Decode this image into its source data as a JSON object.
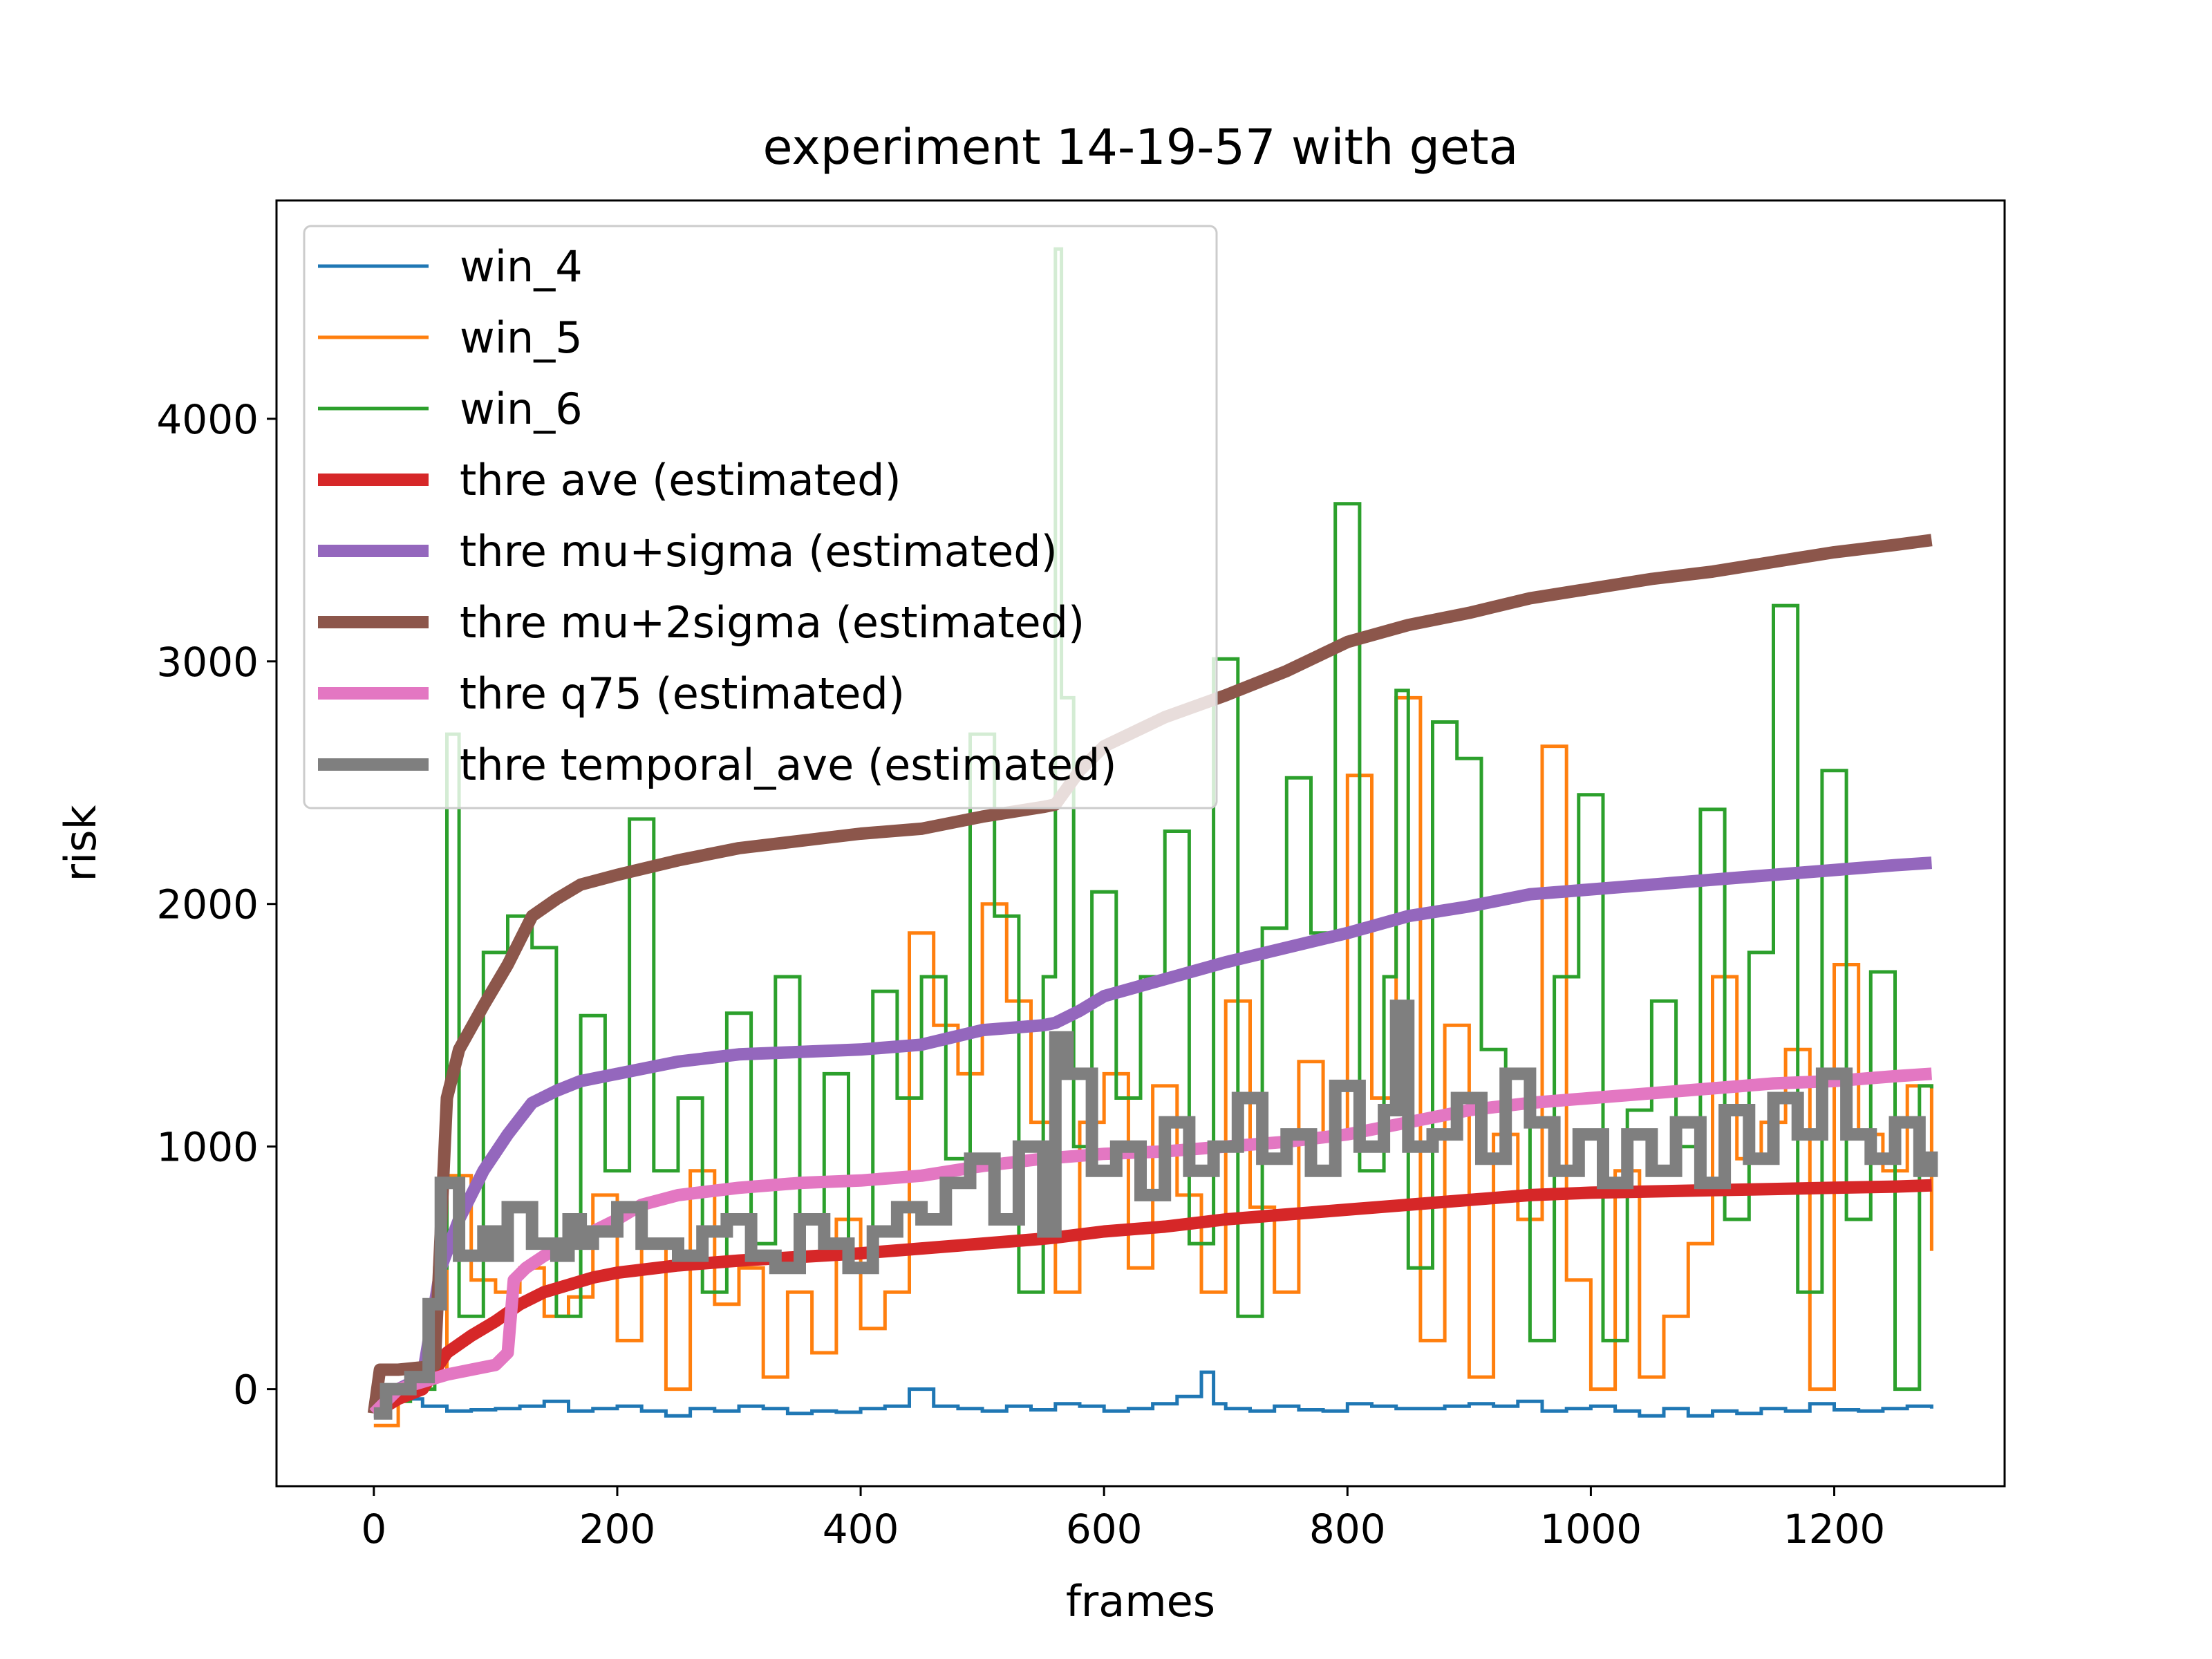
{
  "chart_data": {
    "type": "line",
    "title": "experiment 14-19-57 with geta",
    "xlabel": "frames",
    "ylabel": "risk",
    "xlim": [
      -80,
      1340
    ],
    "ylim": [
      -400,
      4900
    ],
    "xticks": [
      0,
      200,
      400,
      600,
      800,
      1000,
      1200
    ],
    "yticks": [
      0,
      1000,
      2000,
      3000,
      4000
    ],
    "xtick_labels": [
      "0",
      "200",
      "400",
      "600",
      "800",
      "1000",
      "1200"
    ],
    "ytick_labels": [
      "0",
      "1000",
      "2000",
      "3000",
      "4000"
    ],
    "legend_position": "top-left",
    "series": [
      {
        "name": "win_4",
        "color": "#1f77b4",
        "width": "thin",
        "step": true,
        "x": [
          0,
          10,
          20,
          30,
          40,
          60,
          80,
          100,
          120,
          140,
          160,
          180,
          200,
          220,
          240,
          260,
          280,
          300,
          320,
          340,
          360,
          380,
          400,
          420,
          440,
          460,
          480,
          500,
          520,
          540,
          560,
          580,
          600,
          620,
          640,
          660,
          680,
          690,
          700,
          720,
          740,
          760,
          780,
          800,
          820,
          840,
          860,
          880,
          900,
          920,
          940,
          960,
          980,
          1000,
          1020,
          1040,
          1060,
          1080,
          1100,
          1120,
          1140,
          1160,
          1180,
          1200,
          1220,
          1240,
          1260,
          1280
        ],
        "values": [
          -110,
          -60,
          -30,
          -40,
          -70,
          -90,
          -85,
          -80,
          -70,
          -50,
          -90,
          -80,
          -70,
          -90,
          -110,
          -80,
          -90,
          -70,
          -80,
          -100,
          -90,
          -95,
          -80,
          -70,
          0,
          -70,
          -80,
          -90,
          -70,
          -85,
          -60,
          -70,
          -90,
          -80,
          -60,
          -30,
          70,
          -60,
          -80,
          -90,
          -70,
          -85,
          -90,
          -60,
          -70,
          -80,
          -80,
          -70,
          -60,
          -70,
          -50,
          -90,
          -80,
          -70,
          -90,
          -110,
          -80,
          -110,
          -90,
          -100,
          -80,
          -90,
          -60,
          -85,
          -90,
          -80,
          -70,
          -80
        ]
      },
      {
        "name": "win_5",
        "color": "#ff7f0e",
        "width": "thin",
        "step": true,
        "x": [
          0,
          20,
          40,
          60,
          80,
          100,
          120,
          140,
          160,
          180,
          200,
          220,
          240,
          260,
          280,
          300,
          320,
          340,
          360,
          380,
          400,
          420,
          440,
          460,
          480,
          500,
          520,
          540,
          560,
          580,
          600,
          620,
          640,
          660,
          680,
          700,
          720,
          740,
          760,
          780,
          800,
          820,
          840,
          860,
          880,
          900,
          920,
          940,
          960,
          980,
          1000,
          1020,
          1040,
          1060,
          1080,
          1100,
          1120,
          1140,
          1160,
          1180,
          1200,
          1220,
          1240,
          1260,
          1280
        ],
        "values": [
          -150,
          0,
          50,
          880,
          450,
          400,
          500,
          300,
          380,
          800,
          200,
          600,
          0,
          900,
          350,
          500,
          50,
          400,
          150,
          700,
          250,
          400,
          1880,
          1500,
          1300,
          2000,
          1600,
          1100,
          400,
          1100,
          1300,
          500,
          1250,
          800,
          400,
          1600,
          750,
          400,
          1350,
          1050,
          2530,
          1200,
          2850,
          200,
          1500,
          50,
          1050,
          700,
          2650,
          450,
          0,
          900,
          50,
          300,
          600,
          1700,
          950,
          1100,
          1400,
          0,
          1750,
          1050,
          900,
          1250,
          570
        ]
      },
      {
        "name": "win_6",
        "color": "#2ca02c",
        "width": "thin",
        "step": true,
        "x": [
          0,
          30,
          50,
          60,
          70,
          90,
          110,
          130,
          150,
          170,
          190,
          210,
          230,
          250,
          270,
          290,
          310,
          330,
          350,
          370,
          390,
          410,
          430,
          450,
          470,
          490,
          510,
          530,
          550,
          560,
          565,
          575,
          590,
          610,
          630,
          650,
          670,
          690,
          710,
          730,
          750,
          770,
          790,
          810,
          830,
          840,
          850,
          870,
          890,
          910,
          930,
          950,
          970,
          990,
          1010,
          1030,
          1050,
          1070,
          1090,
          1110,
          1130,
          1150,
          1170,
          1190,
          1210,
          1230,
          1250,
          1270,
          1280
        ],
        "values": [
          -50,
          0,
          500,
          2700,
          300,
          1800,
          1950,
          1820,
          300,
          1540,
          900,
          2350,
          900,
          1200,
          400,
          1550,
          600,
          1700,
          700,
          1300,
          500,
          1640,
          1200,
          1700,
          950,
          2700,
          1950,
          400,
          1700,
          4700,
          2850,
          1000,
          2050,
          1200,
          1700,
          2300,
          600,
          3010,
          300,
          1900,
          2520,
          1880,
          3650,
          900,
          1700,
          2880,
          500,
          2750,
          2600,
          1400,
          1300,
          200,
          1700,
          2450,
          200,
          1150,
          1600,
          1000,
          2390,
          700,
          1800,
          3230,
          400,
          2550,
          700,
          1720,
          0,
          1250,
          1240
        ]
      },
      {
        "name": "thre ave (estimated)",
        "color": "#d62728",
        "width": "thick",
        "step": false,
        "x": [
          0,
          20,
          40,
          60,
          80,
          100,
          120,
          140,
          160,
          180,
          200,
          250,
          300,
          350,
          400,
          450,
          500,
          550,
          560,
          600,
          650,
          700,
          750,
          800,
          850,
          900,
          950,
          1000,
          1050,
          1100,
          1150,
          1200,
          1250,
          1280
        ],
        "values": [
          -100,
          -40,
          0,
          150,
          220,
          280,
          350,
          400,
          430,
          460,
          480,
          510,
          530,
          545,
          560,
          580,
          600,
          620,
          625,
          650,
          670,
          700,
          720,
          740,
          760,
          780,
          800,
          810,
          815,
          820,
          825,
          830,
          835,
          840
        ]
      },
      {
        "name": "thre mu+sigma (estimated)",
        "color": "#9467bd",
        "width": "thick",
        "step": false,
        "x": [
          0,
          20,
          40,
          55,
          70,
          90,
          110,
          130,
          150,
          170,
          200,
          250,
          300,
          350,
          400,
          450,
          500,
          550,
          560,
          580,
          600,
          650,
          700,
          750,
          800,
          850,
          900,
          950,
          1000,
          1050,
          1100,
          1150,
          1200,
          1250,
          1280
        ],
        "values": [
          -100,
          0,
          50,
          500,
          700,
          900,
          1050,
          1180,
          1230,
          1270,
          1300,
          1350,
          1380,
          1390,
          1400,
          1420,
          1480,
          1500,
          1510,
          1560,
          1620,
          1690,
          1760,
          1820,
          1880,
          1950,
          1990,
          2040,
          2060,
          2080,
          2100,
          2120,
          2140,
          2160,
          2170
        ]
      },
      {
        "name": "thre mu+2sigma (estimated)",
        "color": "#8c564b",
        "width": "thick",
        "step": false,
        "x": [
          0,
          5,
          20,
          40,
          50,
          60,
          70,
          90,
          110,
          130,
          150,
          170,
          200,
          250,
          300,
          350,
          400,
          450,
          500,
          550,
          560,
          580,
          600,
          650,
          700,
          750,
          800,
          850,
          900,
          950,
          1000,
          1050,
          1100,
          1150,
          1200,
          1250,
          1280
        ],
        "values": [
          -100,
          80,
          80,
          90,
          100,
          1200,
          1400,
          1580,
          1750,
          1950,
          2020,
          2080,
          2120,
          2180,
          2230,
          2260,
          2290,
          2310,
          2360,
          2400,
          2410,
          2550,
          2650,
          2770,
          2860,
          2960,
          3080,
          3150,
          3200,
          3260,
          3300,
          3340,
          3370,
          3410,
          3450,
          3480,
          3500
        ]
      },
      {
        "name": "thre q75 (estimated)",
        "color": "#e377c2",
        "width": "thick",
        "step": false,
        "x": [
          0,
          20,
          40,
          60,
          80,
          100,
          110,
          115,
          125,
          140,
          160,
          180,
          200,
          220,
          250,
          300,
          350,
          400,
          450,
          500,
          550,
          600,
          650,
          700,
          750,
          800,
          850,
          900,
          950,
          1000,
          1050,
          1100,
          1150,
          1200,
          1250,
          1280
        ],
        "values": [
          -100,
          0,
          30,
          60,
          80,
          100,
          150,
          450,
          500,
          550,
          600,
          650,
          700,
          760,
          800,
          830,
          850,
          860,
          880,
          920,
          950,
          970,
          980,
          1000,
          1020,
          1050,
          1100,
          1150,
          1180,
          1200,
          1220,
          1240,
          1260,
          1270,
          1290,
          1300
        ]
      },
      {
        "name": "thre temporal_ave (estimated)",
        "color": "#7f7f7f",
        "width": "thick",
        "step": true,
        "x": [
          0,
          10,
          30,
          45,
          55,
          70,
          90,
          100,
          110,
          130,
          150,
          160,
          170,
          180,
          200,
          220,
          250,
          270,
          290,
          310,
          330,
          350,
          370,
          390,
          410,
          430,
          450,
          470,
          490,
          510,
          530,
          550,
          560,
          570,
          590,
          610,
          630,
          650,
          670,
          690,
          710,
          730,
          750,
          770,
          790,
          810,
          830,
          840,
          850,
          870,
          890,
          910,
          930,
          950,
          970,
          990,
          1010,
          1030,
          1050,
          1070,
          1090,
          1110,
          1130,
          1150,
          1170,
          1190,
          1210,
          1230,
          1250,
          1270,
          1280
        ],
        "values": [
          -100,
          0,
          50,
          350,
          850,
          550,
          650,
          550,
          750,
          600,
          550,
          700,
          600,
          650,
          750,
          600,
          550,
          650,
          700,
          550,
          500,
          700,
          600,
          500,
          650,
          750,
          700,
          850,
          950,
          700,
          1000,
          650,
          1450,
          1300,
          900,
          1000,
          800,
          1100,
          900,
          1000,
          1200,
          950,
          1050,
          900,
          1250,
          1000,
          1150,
          1580,
          1000,
          1050,
          1200,
          950,
          1300,
          1100,
          900,
          1050,
          850,
          1050,
          900,
          1100,
          850,
          1150,
          950,
          1200,
          1050,
          1300,
          1050,
          950,
          1100,
          900,
          980
        ]
      }
    ]
  }
}
